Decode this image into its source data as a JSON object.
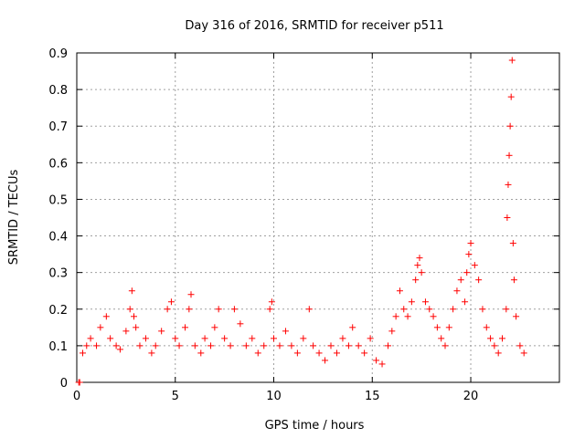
{
  "chart_data": {
    "type": "scatter",
    "title": "Day 316 of 2016, SRMTID for receiver p511",
    "xlabel": "GPS time / hours",
    "ylabel": "SRMTID / TECUs",
    "xlim": [
      0,
      24.5
    ],
    "ylim": [
      0,
      0.9
    ],
    "x_ticks": [
      0,
      5,
      10,
      15,
      20
    ],
    "x_tick_labels": [
      "0",
      "5",
      "10",
      "15",
      "20"
    ],
    "y_ticks": [
      0,
      0.1,
      0.2,
      0.3,
      0.4,
      0.5,
      0.6,
      0.7,
      0.8,
      0.9
    ],
    "y_tick_labels": [
      "0",
      "0.1",
      "0.2",
      "0.3",
      "0.4",
      "0.5",
      "0.6",
      "0.7",
      "0.8",
      "0.9"
    ],
    "grid": true,
    "marker": "+",
    "marker_color": "#ff0000",
    "series": [
      {
        "name": "SRMTID",
        "x": [
          0.1,
          0.15,
          0.3,
          0.5,
          0.7,
          1.0,
          1.2,
          1.5,
          1.7,
          2.0,
          2.2,
          2.5,
          2.7,
          2.8,
          2.9,
          3.0,
          3.2,
          3.5,
          3.8,
          4.0,
          4.3,
          4.6,
          4.8,
          5.0,
          5.2,
          5.5,
          5.7,
          5.8,
          6.0,
          6.3,
          6.5,
          6.8,
          7.0,
          7.2,
          7.5,
          7.8,
          8.0,
          8.3,
          8.6,
          8.9,
          9.2,
          9.5,
          9.8,
          9.9,
          10.0,
          10.3,
          10.6,
          10.9,
          11.2,
          11.5,
          11.8,
          12.0,
          12.3,
          12.6,
          12.9,
          13.2,
          13.5,
          13.8,
          14.0,
          14.3,
          14.6,
          14.9,
          15.2,
          15.5,
          15.8,
          16.0,
          16.2,
          16.4,
          16.6,
          16.8,
          17.0,
          17.2,
          17.3,
          17.4,
          17.5,
          17.7,
          17.9,
          18.1,
          18.3,
          18.5,
          18.7,
          18.9,
          19.1,
          19.3,
          19.5,
          19.7,
          19.8,
          19.9,
          20.0,
          20.2,
          20.4,
          20.6,
          20.8,
          21.0,
          21.2,
          21.4,
          21.6,
          21.8,
          21.85,
          21.9,
          21.95,
          22.0,
          22.05,
          22.1,
          22.15,
          22.2,
          22.3,
          22.5,
          22.7
        ],
        "y": [
          0.0,
          0.0,
          0.08,
          0.1,
          0.12,
          0.1,
          0.15,
          0.18,
          0.12,
          0.1,
          0.09,
          0.14,
          0.2,
          0.25,
          0.18,
          0.15,
          0.1,
          0.12,
          0.08,
          0.1,
          0.14,
          0.2,
          0.22,
          0.12,
          0.1,
          0.15,
          0.2,
          0.24,
          0.1,
          0.08,
          0.12,
          0.1,
          0.15,
          0.2,
          0.12,
          0.1,
          0.2,
          0.16,
          0.1,
          0.12,
          0.08,
          0.1,
          0.2,
          0.22,
          0.12,
          0.1,
          0.14,
          0.1,
          0.08,
          0.12,
          0.2,
          0.1,
          0.08,
          0.06,
          0.1,
          0.08,
          0.12,
          0.1,
          0.15,
          0.1,
          0.08,
          0.12,
          0.06,
          0.05,
          0.1,
          0.14,
          0.18,
          0.25,
          0.2,
          0.18,
          0.22,
          0.28,
          0.32,
          0.34,
          0.3,
          0.22,
          0.2,
          0.18,
          0.15,
          0.12,
          0.1,
          0.15,
          0.2,
          0.25,
          0.28,
          0.22,
          0.3,
          0.35,
          0.38,
          0.32,
          0.28,
          0.2,
          0.15,
          0.12,
          0.1,
          0.08,
          0.12,
          0.2,
          0.45,
          0.54,
          0.62,
          0.7,
          0.78,
          0.88,
          0.38,
          0.28,
          0.18,
          0.1,
          0.08
        ]
      }
    ]
  }
}
